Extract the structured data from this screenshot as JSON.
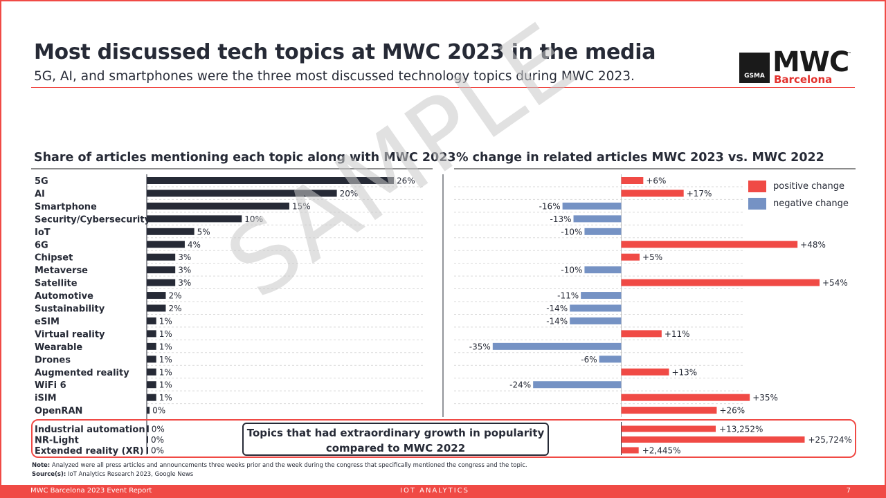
{
  "header": {
    "title": "Most discussed tech topics at MWC 2023 in the media",
    "subtitle": "5G, AI, and smartphones were the three most discussed technology topics during MWC 2023."
  },
  "logo": {
    "badge": "GSMA",
    "wordmark": "MWC",
    "trademark": "™",
    "city": "Barcelona"
  },
  "watermark": "SAMPLE",
  "callout": "Topics that had extraordinary growth in popularity compared to MWC 2022",
  "legend": {
    "positive": {
      "label": "positive change",
      "color": "#f04a45"
    },
    "negative": {
      "label": "negative change",
      "color": "#7592c4"
    }
  },
  "notes": {
    "note_label": "Note:",
    "note": "Analyzed were all press articles and announcements three weeks prior and the week during the congress that specifically mentioned the congress and the topic.",
    "source_label": "Source(s):",
    "source": "IoT Analytics Research 2023, Google News"
  },
  "footer": {
    "left": "MWC Barcelona 2023 Event Report",
    "center": "IOT ANALYTICS",
    "page": "7"
  },
  "chart_data": [
    {
      "type": "bar",
      "orientation": "horizontal",
      "title": "Share of articles mentioning each topic along with MWC 2023",
      "bar_color": "#262a36",
      "categories": [
        "5G",
        "AI",
        "Smartphone",
        "Security/Cybersecurity",
        "IoT",
        "6G",
        "Chipset",
        "Metaverse",
        "Satellite",
        "Automotive",
        "Sustainability",
        "eSIM",
        "Virtual reality",
        "Wearable",
        "Drones",
        "Augmented reality",
        "WiFi 6",
        "iSIM",
        "OpenRAN",
        "Industrial automation",
        "NR-Light",
        "Extended reality (XR)"
      ],
      "values": [
        26,
        20,
        15,
        10,
        5,
        4,
        3,
        3,
        3,
        2,
        2,
        1,
        1,
        1,
        1,
        1,
        1,
        1,
        0.3,
        0.2,
        0.1,
        0.1
      ],
      "labels": [
        "26%",
        "20%",
        "15%",
        "10%",
        "5%",
        "4%",
        "3%",
        "3%",
        "3%",
        "2%",
        "2%",
        "1%",
        "1%",
        "1%",
        "1%",
        "1%",
        "1%",
        "1%",
        "0%",
        "0%",
        "0%",
        "0%"
      ]
    },
    {
      "type": "bar",
      "orientation": "horizontal",
      "title": "% change in related articles MWC 2023 vs. MWC 2022",
      "categories": [
        "5G",
        "AI",
        "Smartphone",
        "Security/Cybersecurity",
        "IoT",
        "6G",
        "Chipset",
        "Metaverse",
        "Satellite",
        "Automotive",
        "Sustainability",
        "eSIM",
        "Virtual reality",
        "Wearable",
        "Drones",
        "Augmented reality",
        "WiFi 6",
        "iSIM",
        "OpenRAN"
      ],
      "values": [
        6,
        17,
        -16,
        -13,
        -10,
        48,
        5,
        -10,
        54,
        -11,
        -14,
        -14,
        11,
        -35,
        -6,
        13,
        -24,
        35,
        26
      ],
      "labels": [
        "+6%",
        "+17%",
        "-16%",
        "-13%",
        "-10%",
        "+48%",
        "+5%",
        "-10%",
        "+54%",
        "-11%",
        "-14%",
        "-14%",
        "+11%",
        "-35%",
        "-6%",
        "+13%",
        "-24%",
        "+35%",
        "+26%"
      ],
      "extraordinary": {
        "categories": [
          "Industrial automation",
          "NR-Light",
          "Extended reality (XR)"
        ],
        "values": [
          13252,
          25724,
          2445
        ],
        "labels": [
          "+13,252%",
          "+25,724%",
          "+2,445%"
        ]
      }
    }
  ]
}
